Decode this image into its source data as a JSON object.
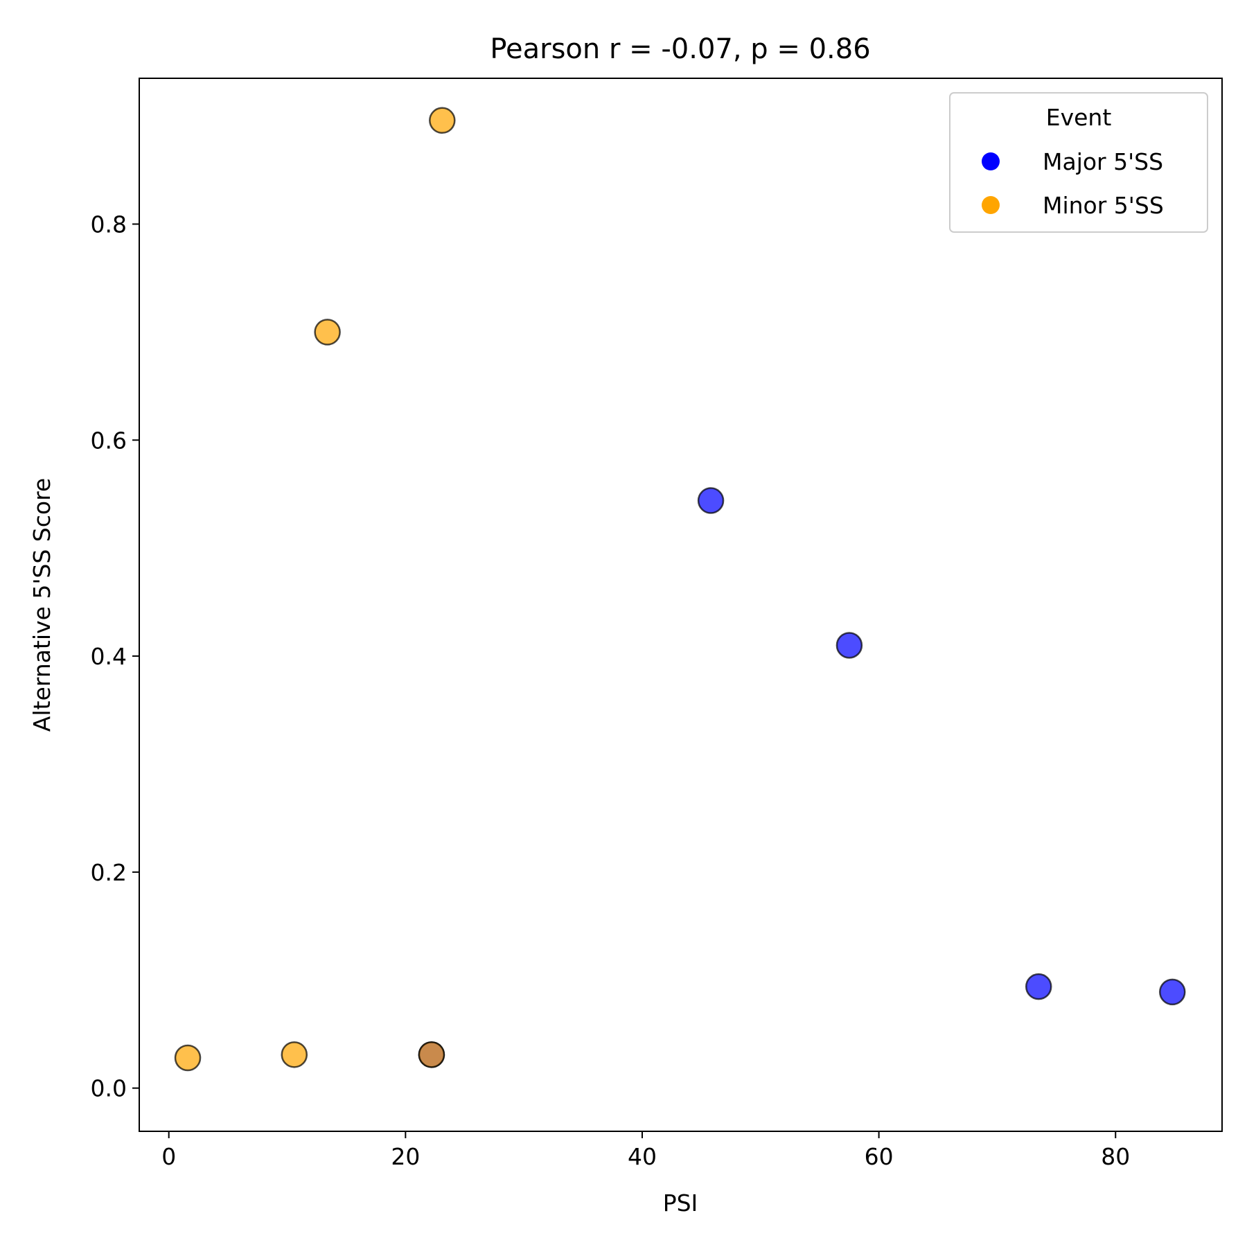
{
  "chart_data": {
    "type": "scatter",
    "title": "Pearson r = -0.07, p = 0.86",
    "xlabel": "PSI",
    "ylabel": "Alternative 5'SS Score",
    "xlim": [
      -2.5,
      89
    ],
    "ylim": [
      -0.04,
      0.935
    ],
    "x_ticks": [
      0,
      20,
      40,
      60,
      80
    ],
    "x_tick_labels": [
      "0",
      "20",
      "40",
      "60",
      "80"
    ],
    "y_ticks": [
      0.0,
      0.2,
      0.4,
      0.6,
      0.8
    ],
    "y_tick_labels": [
      "0.0",
      "0.2",
      "0.4",
      "0.6",
      "0.8"
    ],
    "grid": false,
    "legend": {
      "title": "Event",
      "placement": "top-right"
    },
    "series": [
      {
        "name": "Major 5'SS",
        "color": "#0000ff",
        "points": [
          {
            "x": 22.2,
            "y": 0.031
          },
          {
            "x": 45.8,
            "y": 0.544
          },
          {
            "x": 57.5,
            "y": 0.41
          },
          {
            "x": 73.5,
            "y": 0.094
          },
          {
            "x": 84.8,
            "y": 0.089
          }
        ]
      },
      {
        "name": "Minor 5'SS",
        "color": "#ffa500",
        "points": [
          {
            "x": 1.6,
            "y": 0.028
          },
          {
            "x": 10.6,
            "y": 0.031
          },
          {
            "x": 13.4,
            "y": 0.7
          },
          {
            "x": 22.2,
            "y": 0.031
          },
          {
            "x": 23.1,
            "y": 0.896
          }
        ]
      }
    ]
  }
}
